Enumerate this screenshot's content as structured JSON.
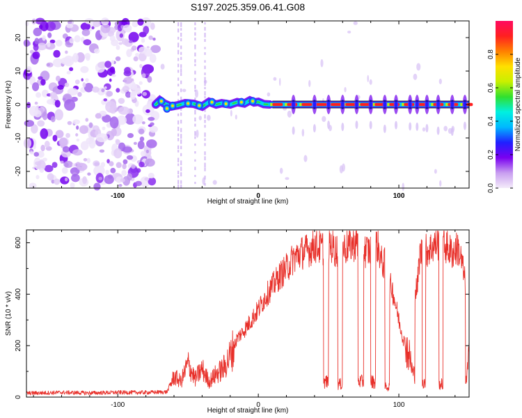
{
  "chart_data": [
    {
      "type": "heatmap",
      "title": "S197.2025.359.06.41.G08",
      "xlabel": "Height of straight line (km)",
      "ylabel": "Frequency (Hz)",
      "xlim": [
        -165,
        150
      ],
      "ylim": [
        -25,
        25
      ],
      "xticks": [
        -100,
        0,
        100
      ],
      "xtick_labels": [
        "-100",
        "0",
        "100"
      ],
      "yticks": [
        -20,
        -10,
        0,
        10,
        20
      ],
      "ytick_labels": [
        "-20",
        "-10",
        "0",
        "10",
        "20"
      ],
      "colorbar": {
        "label": "Normalized spectral amplitude",
        "range": [
          0,
          1
        ],
        "ticks": [
          0.0,
          0.2,
          0.4,
          0.6,
          0.8
        ],
        "tick_labels": [
          "0.0",
          "0.2",
          "0.4",
          "0.6",
          "0.8"
        ],
        "colors": [
          "#f4ecfa",
          "#c89ef0",
          "#7a00f0",
          "#2020ff",
          "#00b8ff",
          "#00f0e0",
          "#30e030",
          "#c8f000",
          "#ffe000",
          "#ff8000",
          "#ff2020",
          "#ff0a60"
        ]
      },
      "features": {
        "noise_region_x": [
          -165,
          -73
        ],
        "signal_start_x": -73,
        "tracking_line_start_x": 10,
        "centerline_freq": 0
      }
    },
    {
      "type": "line",
      "xlabel": "Height of straight line (km)",
      "ylabel": "SNR (10 * v/v)",
      "xlim": [
        -165,
        150
      ],
      "ylim": [
        0,
        650
      ],
      "xticks": [
        -100,
        0,
        100
      ],
      "xtick_labels": [
        "-100",
        "0",
        "100"
      ],
      "yticks": [
        0,
        200,
        400,
        600
      ],
      "ytick_labels": [
        "0",
        "200",
        "400",
        "600"
      ],
      "color": "#e8302a",
      "series": [
        {
          "name": "SNR",
          "x": [
            -165,
            -140,
            -120,
            -100,
            -80,
            -65,
            -60,
            -55,
            -50,
            -45,
            -40,
            -35,
            -30,
            -25,
            -20,
            -15,
            -10,
            -5,
            0,
            5,
            10,
            15,
            20,
            25,
            30,
            35,
            38,
            40,
            45,
            48,
            52,
            55,
            58,
            62,
            65,
            70,
            72,
            78,
            82,
            85,
            88,
            92,
            95,
            100,
            103,
            108,
            110,
            113,
            115,
            118,
            120,
            123,
            127,
            130,
            133,
            138,
            142,
            145,
            147,
            148,
            150
          ],
          "values": [
            15,
            18,
            16,
            18,
            18,
            20,
            80,
            60,
            130,
            70,
            110,
            60,
            90,
            110,
            160,
            230,
            260,
            300,
            340,
            390,
            430,
            470,
            500,
            540,
            560,
            570,
            580,
            590,
            580,
            60,
            590,
            570,
            50,
            580,
            590,
            600,
            60,
            570,
            60,
            590,
            520,
            40,
            430,
            300,
            230,
            150,
            90,
            420,
            560,
            60,
            570,
            580,
            600,
            50,
            590,
            560,
            580,
            520,
            450,
            60,
            160
          ]
        }
      ]
    }
  ]
}
